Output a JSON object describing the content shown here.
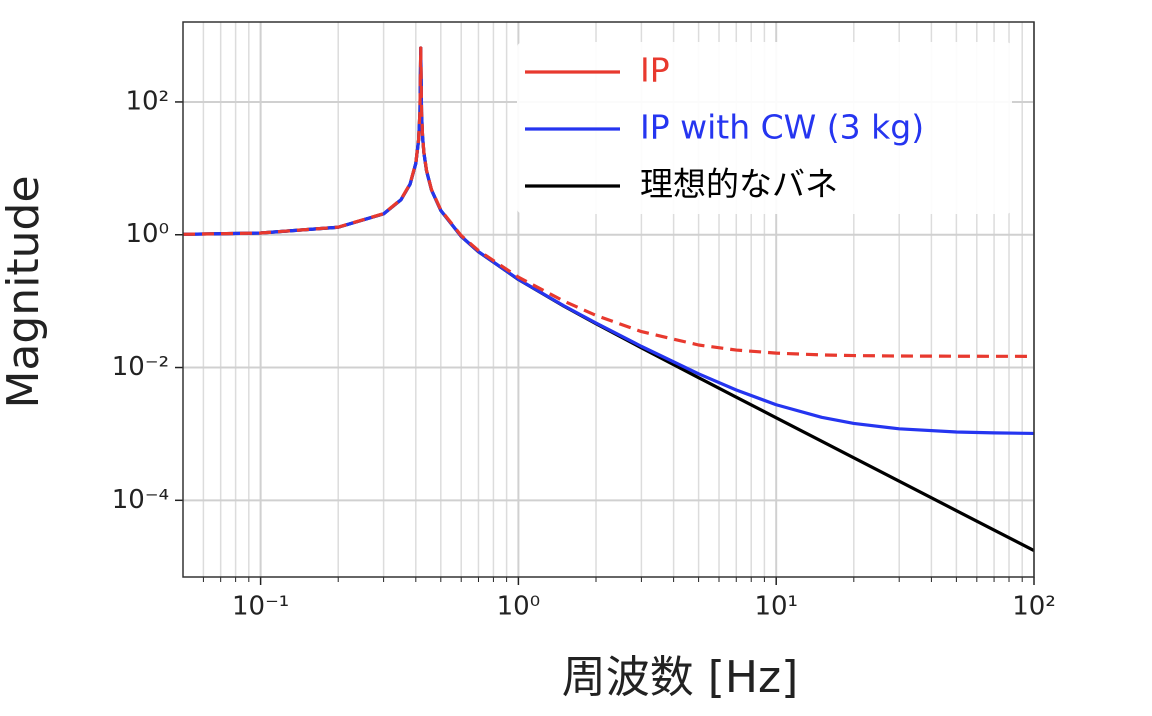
{
  "chart_data": {
    "type": "line",
    "x_label": "周波数 [Hz]",
    "y_label": "Magnitude",
    "log_x": true,
    "log_y": true,
    "grid": true,
    "legend_position": "upper right",
    "xlim": [
      0.05,
      100
    ],
    "ylim": [
      7e-06,
      1600
    ],
    "xticks": [
      {
        "value": 0.1,
        "label": "10⁻¹"
      },
      {
        "value": 1,
        "label": "10⁰"
      },
      {
        "value": 10,
        "label": "10¹"
      },
      {
        "value": 100,
        "label": "10²"
      }
    ],
    "xminorticks": [
      0.06,
      0.07,
      0.08,
      0.09,
      0.2,
      0.3,
      0.4,
      0.5,
      0.6,
      0.7,
      0.8,
      0.9,
      2,
      3,
      4,
      5,
      6,
      7,
      8,
      9,
      20,
      30,
      40,
      50,
      60,
      70,
      80,
      90
    ],
    "yticks": [
      {
        "value": 0.0001,
        "label": "10⁻⁴"
      },
      {
        "value": 0.01,
        "label": "10⁻²"
      },
      {
        "value": 1,
        "label": "10⁰"
      },
      {
        "value": 100,
        "label": "10²"
      }
    ],
    "x": [
      0.05,
      0.1,
      0.2,
      0.3,
      0.35,
      0.38,
      0.4,
      0.41,
      0.415,
      0.418,
      0.421,
      0.425,
      0.43,
      0.44,
      0.46,
      0.5,
      0.6,
      0.7,
      1,
      1.5,
      2,
      3,
      5,
      7,
      10,
      15,
      20,
      30,
      50,
      70,
      100
    ],
    "series": [
      {
        "name": "理想的なバネ",
        "color": "#000000",
        "style": "solid",
        "values": [
          1.015,
          1.061,
          1.297,
          2.063,
          3.35,
          5.77,
          11.9,
          26.5,
          70.7,
          650,
          68.8,
          29.5,
          17.1,
          9.24,
          4.73,
          2.32,
          0.943,
          0.554,
          0.2117,
          0.0842,
          0.04567,
          0.0198,
          0.007037,
          0.003578,
          0.00175,
          0.000777,
          0.000437,
          0.000194,
          6.99e-05,
          3.57e-05,
          1.75e-05
        ]
      },
      {
        "name": "IP with CW (3 kg)",
        "color": "#2535f0",
        "style": "solid",
        "values": [
          1.015,
          1.061,
          1.297,
          2.064,
          3.35,
          5.77,
          11.9,
          26.5,
          70.7,
          650,
          68.8,
          29.5,
          17.1,
          9.25,
          4.74,
          2.323,
          0.945,
          0.5556,
          0.2129,
          0.08527,
          0.04672,
          0.02082,
          0.008044,
          0.004582,
          0.002752,
          0.001778,
          0.001437,
          0.001194,
          0.00107,
          0.001036,
          0.0010175
        ]
      },
      {
        "name": "IP",
        "color": "#e8392e",
        "style": "dashed",
        "values": [
          1.015,
          1.061,
          1.301,
          2.08,
          3.39,
          5.85,
          12.1,
          27.0,
          72,
          650,
          70,
          30,
          17.5,
          9.4,
          4.8,
          2.37,
          0.971,
          0.577,
          0.2295,
          0.1001,
          0.061,
          0.0348,
          0.02184,
          0.01833,
          0.01648,
          0.01549,
          0.01514,
          0.0149,
          0.0148,
          0.01476,
          0.01473
        ]
      }
    ]
  }
}
